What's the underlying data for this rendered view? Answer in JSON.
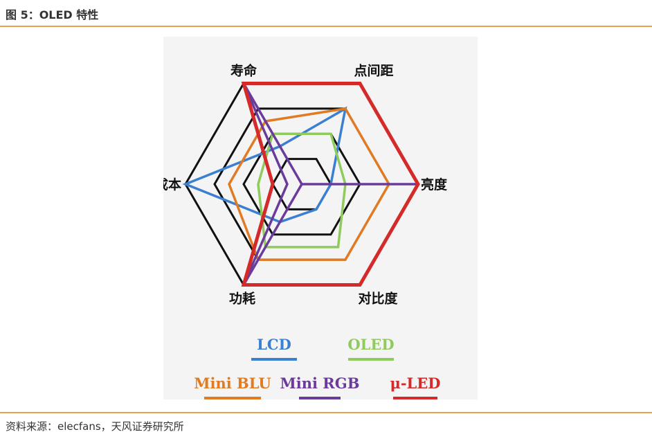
{
  "header": {
    "title": "图 5：OLED 特性"
  },
  "footer": {
    "source": "资料来源：elecfans，天风证券研究所"
  },
  "chart_data": {
    "type": "radar",
    "axes": [
      "寿命",
      "点间距",
      "亮度",
      "对比度",
      "功耗",
      "成本"
    ],
    "rings": 4,
    "max": 4,
    "grid_color": "#111111",
    "series": [
      {
        "name": "LCD",
        "color": "#3b7fd0",
        "values": [
          1.5,
          3,
          1,
          1,
          1.5,
          4
        ]
      },
      {
        "name": "OLED",
        "color": "#8fcb5c",
        "values": [
          2,
          2,
          1.5,
          2.5,
          2.5,
          1.5
        ]
      },
      {
        "name": "Mini BLU",
        "color": "#e07b23",
        "values": [
          2.5,
          3,
          3,
          3,
          3,
          2.5
        ]
      },
      {
        "name": "Mini RGB",
        "color": "#6a3b9a",
        "values": [
          4,
          0,
          4,
          0,
          4,
          0.5
        ]
      },
      {
        "name": "μ-LED",
        "color": "#d42a2a",
        "values": [
          4,
          4,
          4,
          4,
          4,
          1
        ]
      }
    ]
  }
}
